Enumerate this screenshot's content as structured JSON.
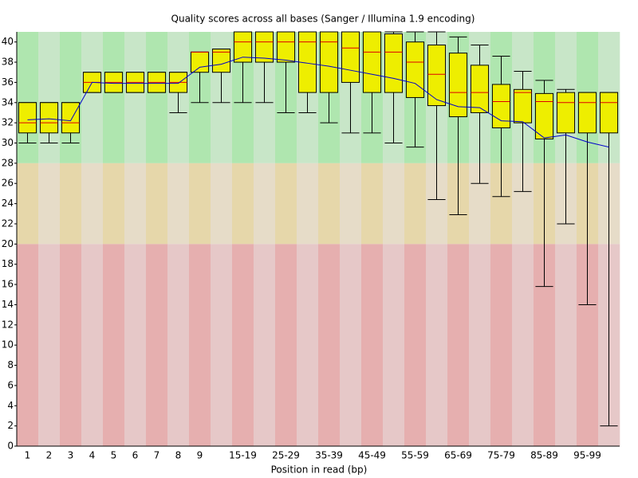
{
  "chart_data": {
    "type": "boxplot",
    "title": "Quality scores across all bases (Sanger / Illumina 1.9 encoding)",
    "x_label": "Position in read (bp)",
    "categories": [
      "1",
      "2",
      "3",
      "4",
      "5",
      "6",
      "7",
      "8",
      "9",
      null,
      "15-19",
      null,
      "25-29",
      null,
      "35-39",
      null,
      "45-49",
      null,
      "55-59",
      null,
      "65-69",
      null,
      "75-79",
      null,
      "85-89",
      null,
      "95-99",
      null
    ],
    "lower_whisker": [
      30,
      30,
      30,
      35,
      35,
      35,
      35,
      33,
      34,
      34,
      34,
      34,
      33,
      33,
      32,
      31,
      31,
      30,
      29.6,
      24.4,
      22.9,
      26,
      24.7,
      25.2,
      15.8,
      22,
      14,
      2
    ],
    "q1": [
      31,
      31,
      31,
      35,
      35,
      35,
      35,
      35,
      37,
      37,
      38,
      38,
      38,
      35,
      35,
      36,
      35,
      35,
      34.5,
      33.7,
      32.6,
      33,
      31.5,
      32,
      30.4,
      31,
      31,
      31
    ],
    "median": [
      32,
      32,
      32,
      36,
      36,
      36,
      36,
      36,
      39,
      39,
      40,
      40,
      40,
      40,
      40,
      39.4,
      39,
      39,
      38,
      36.8,
      35,
      35,
      34.1,
      35,
      34.1,
      34,
      34,
      34
    ],
    "q3": [
      34,
      34,
      34,
      37,
      37,
      37,
      37,
      37,
      39,
      39.3,
      41,
      41,
      41,
      41,
      41,
      41,
      41,
      40.8,
      40,
      39.7,
      38.9,
      37.7,
      35.8,
      35.3,
      34.9,
      35,
      35,
      35
    ],
    "upper_whisker": [
      34,
      34,
      34,
      37,
      37,
      37,
      37,
      37,
      39,
      39.3,
      41,
      41,
      41,
      41,
      41,
      41,
      41,
      41,
      41,
      41,
      40.5,
      39.7,
      38.6,
      37.1,
      36.2,
      35.3,
      35,
      35
    ],
    "mean": [
      32.3,
      32.4,
      32.2,
      36,
      35.9,
      35.9,
      35.9,
      35.9,
      37.5,
      37.8,
      38.5,
      38.4,
      38.2,
      37.9,
      37.6,
      37.2,
      36.8,
      36.4,
      35.9,
      34.3,
      33.6,
      33.5,
      32.2,
      32.1,
      30.5,
      30.8,
      30.1,
      29.6
    ],
    "box_color": "#eeee00",
    "median_color": "#dd0000",
    "mean_color": "#0000cc",
    "zones": [
      {
        "from": 28,
        "to": 41,
        "colors": [
          "#afe6af",
          "#c8e6c8"
        ]
      },
      {
        "from": 20,
        "to": 28,
        "colors": [
          "#e6d7aa",
          "#e6dcc8"
        ]
      },
      {
        "from": 0,
        "to": 20,
        "colors": [
          "#e6afaf",
          "#e6c8c8"
        ]
      }
    ],
    "ylim": [
      0,
      41
    ],
    "yticks": [
      0,
      2,
      4,
      6,
      8,
      10,
      12,
      14,
      16,
      18,
      20,
      22,
      24,
      26,
      28,
      30,
      32,
      34,
      36,
      38,
      40
    ]
  }
}
